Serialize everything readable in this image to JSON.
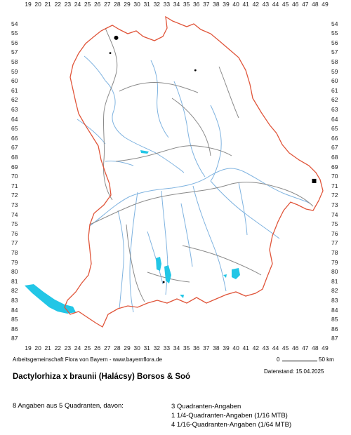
{
  "grid": {
    "columns": [
      "19",
      "20",
      "21",
      "22",
      "23",
      "24",
      "25",
      "26",
      "27",
      "28",
      "29",
      "30",
      "31",
      "32",
      "33",
      "34",
      "35",
      "36",
      "37",
      "38",
      "39",
      "40",
      "41",
      "42",
      "43",
      "44",
      "45",
      "46",
      "47",
      "48",
      "49"
    ],
    "rows": [
      "54",
      "55",
      "56",
      "57",
      "58",
      "59",
      "60",
      "61",
      "62",
      "63",
      "64",
      "65",
      "66",
      "67",
      "68",
      "69",
      "70",
      "71",
      "72",
      "73",
      "74",
      "75",
      "76",
      "77",
      "78",
      "79",
      "80",
      "81",
      "82",
      "83",
      "84",
      "85",
      "86",
      "87"
    ]
  },
  "colors": {
    "state_border": "#e0553a",
    "district_border": "#8a8a8a",
    "river": "#7fb3e0",
    "lake": "#22c6e6",
    "record": "#000000"
  },
  "records": [
    {
      "col": 27.9,
      "row": 55.5,
      "kind": "quadrant",
      "symbol": "large-dot"
    },
    {
      "col": 27.3,
      "row": 57.1,
      "kind": "sixteenth",
      "symbol": "small-dot"
    },
    {
      "col": 35.9,
      "row": 58.9,
      "kind": "sixteenth",
      "symbol": "small-dot"
    },
    {
      "col": 47.9,
      "row": 70.5,
      "kind": "quadrant",
      "symbol": "square"
    },
    {
      "col": 32.7,
      "row": 81.1,
      "kind": "sixteenth",
      "symbol": "small-dot"
    }
  ],
  "footer": {
    "credit": "Arbeitsgemeinschaft Flora von Bayern - www.bayernflora.de",
    "scale_zero": "0",
    "scale_label": "50 km",
    "date": "Datenstand: 15.04.2025"
  },
  "title": "Dactylorhiza x braunii (Halácsy) Borsos & Soó",
  "summary": "8 Angaben aus 5 Quadranten, davon:",
  "counts": [
    "3 Quadranten-Angaben",
    "1 1/4-Quadranten-Angaben (1/16 MTB)",
    "4 1/16-Quadranten-Angaben (1/64 MTB)"
  ]
}
